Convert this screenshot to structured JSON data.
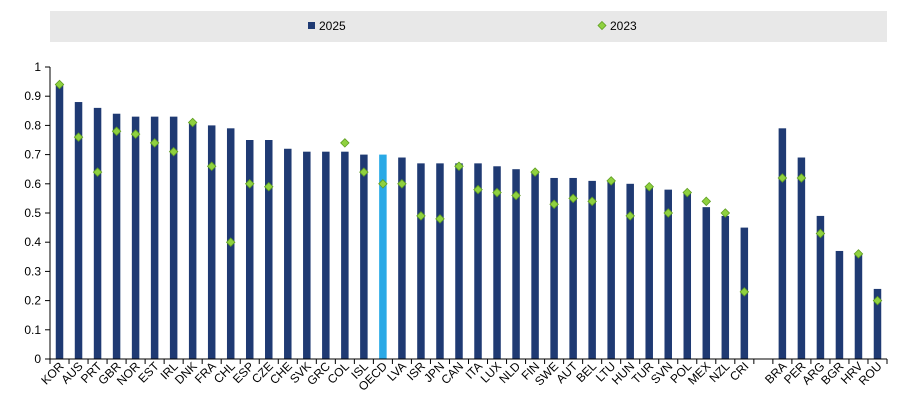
{
  "chart_data": {
    "type": "bar",
    "ylim": [
      0,
      1
    ],
    "yticks": [
      "0",
      "0.1",
      "0.2",
      "0.3",
      "0.4",
      "0.5",
      "0.6",
      "0.7",
      "0.8",
      "0.9",
      "1"
    ],
    "legend_position": "top",
    "grid": false,
    "highlight_category": "OECD",
    "colors": {
      "bar": "#1f3a73",
      "highlight": "#29a9e6",
      "marker": "#8fd13f",
      "marker_edge": "#5f9e22"
    },
    "categories": [
      "KOR",
      "AUS",
      "PRT",
      "GBR",
      "NOR",
      "EST",
      "IRL",
      "DNK",
      "FRA",
      "CHL",
      "ESP",
      "CZE",
      "CHE",
      "SVK",
      "GRC",
      "COL",
      "ISL",
      "OECD",
      "LVA",
      "ISR",
      "JPN",
      "CAN",
      "ITA",
      "LUX",
      "NLD",
      "FIN",
      "SWE",
      "AUT",
      "BEL",
      "LTU",
      "HUN",
      "TUR",
      "SVN",
      "POL",
      "MEX",
      "NZL",
      "CRI",
      "",
      "BRA",
      "PER",
      "ARG",
      "BGR",
      "HRV",
      "ROU"
    ],
    "series": [
      {
        "name": "2025",
        "kind": "bar",
        "values": [
          0.94,
          0.88,
          0.86,
          0.84,
          0.83,
          0.83,
          0.83,
          0.81,
          0.8,
          0.79,
          0.75,
          0.75,
          0.72,
          0.71,
          0.71,
          0.71,
          0.7,
          0.7,
          0.69,
          0.67,
          0.67,
          0.67,
          0.67,
          0.66,
          0.65,
          0.64,
          0.62,
          0.62,
          0.61,
          0.61,
          0.6,
          0.59,
          0.58,
          0.57,
          0.52,
          0.49,
          0.45,
          null,
          0.79,
          0.69,
          0.49,
          0.37,
          0.36,
          0.24
        ]
      },
      {
        "name": "2023",
        "kind": "marker",
        "values": [
          0.94,
          0.76,
          0.64,
          0.78,
          0.77,
          0.74,
          0.71,
          0.81,
          0.66,
          0.4,
          0.6,
          0.59,
          null,
          null,
          null,
          0.74,
          0.64,
          0.6,
          0.6,
          0.49,
          0.48,
          0.66,
          0.58,
          0.57,
          0.56,
          0.64,
          0.53,
          0.55,
          0.54,
          0.61,
          0.49,
          0.59,
          0.5,
          0.57,
          0.54,
          0.5,
          0.23,
          null,
          0.62,
          0.62,
          0.43,
          null,
          0.36,
          0.2
        ]
      }
    ]
  }
}
